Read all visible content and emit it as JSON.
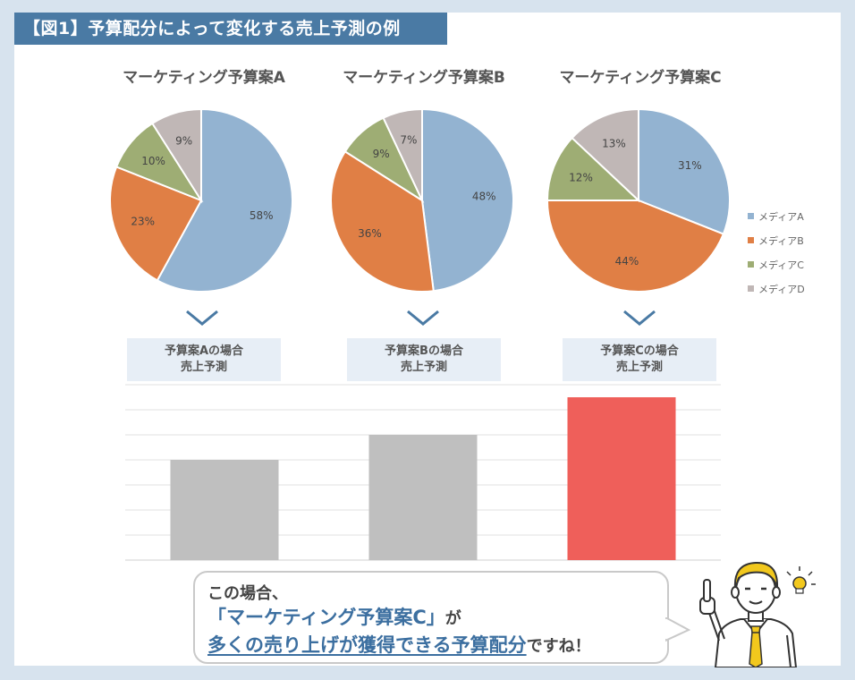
{
  "figure_title": "【図1】予算配分によって変化する売上予測の例",
  "colors": {
    "mediaA": "#93b3d1",
    "mediaB": "#e07f45",
    "mediaC": "#9ead74",
    "mediaD": "#c0b7b6",
    "bar_gray": "#bfbfbf",
    "bar_red": "#ef5f5a",
    "banner": "#4a7aa4"
  },
  "legend": [
    "メディアA",
    "メディアB",
    "メディアC",
    "メディアD"
  ],
  "cases": [
    {
      "line1": "予算案Aの場合",
      "line2": "売上予測"
    },
    {
      "line1": "予算案Bの場合",
      "line2": "売上予測"
    },
    {
      "line1": "予算案Cの場合",
      "line2": "売上予測"
    }
  ],
  "callout": {
    "line1": "この場合、",
    "line2_main": "「マーケティング予算案C」",
    "line2_tail": "が",
    "line3_highlight": "多くの売り上げが獲得できる予算配分",
    "line3_tail": "ですね！"
  },
  "icons": {
    "down_arrow": "chevron-down-icon",
    "person": "businessman-illustration",
    "idea": "lightbulb-icon"
  },
  "chart_data": [
    {
      "type": "pie",
      "title": "マーケティング予算案A",
      "categories": [
        "メディアA",
        "メディアB",
        "メディアC",
        "メディアD"
      ],
      "values": [
        58,
        23,
        10,
        9
      ],
      "labels": [
        "58%",
        "23%",
        "10%",
        "9%"
      ],
      "legend_position": "right"
    },
    {
      "type": "pie",
      "title": "マーケティング予算案B",
      "categories": [
        "メディアA",
        "メディアB",
        "メディアC",
        "メディアD"
      ],
      "values": [
        48,
        36,
        9,
        7
      ],
      "labels": [
        "48%",
        "36%",
        "9%",
        "7%"
      ],
      "legend_position": "right"
    },
    {
      "type": "pie",
      "title": "マーケティング予算案C",
      "categories": [
        "メディアA",
        "メディアB",
        "メディアC",
        "メディアD"
      ],
      "values": [
        31,
        44,
        12,
        13
      ],
      "labels": [
        "31%",
        "44%",
        "12%",
        "13%"
      ],
      "legend_position": "right"
    },
    {
      "type": "bar",
      "categories": [
        "予算案Aの場合 売上予測",
        "予算案Bの場合 売上予測",
        "予算案Cの場合 売上予測"
      ],
      "values": [
        4,
        5,
        6.5
      ],
      "ylim": [
        0,
        7
      ],
      "grid": true,
      "axis_labels_shown": false,
      "highlight_index": 2
    }
  ]
}
